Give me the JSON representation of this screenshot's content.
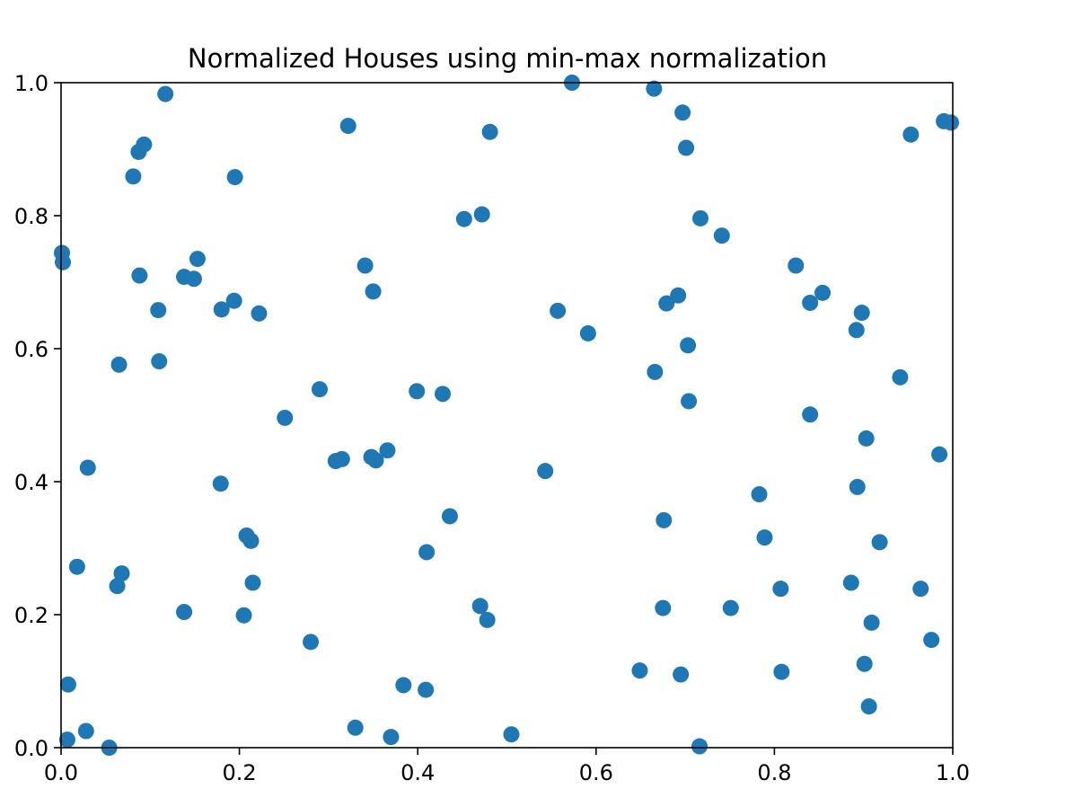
{
  "chart_data": {
    "type": "scatter",
    "title": "Normalized Houses using min-max normalization",
    "xlabel": "",
    "ylabel": "",
    "xlim": [
      0.0,
      1.0
    ],
    "ylim": [
      0.0,
      1.0
    ],
    "xticks": [
      "0.0",
      "0.2",
      "0.4",
      "0.6",
      "0.8",
      "1.0"
    ],
    "yticks": [
      "0.0",
      "0.2",
      "0.4",
      "0.6",
      "0.8",
      "1.0"
    ],
    "grid": false,
    "marker_color": "#1f77b4",
    "series": [
      {
        "points": [
          [
            0.117,
            0.983
          ],
          [
            0.093,
            0.907
          ],
          [
            0.087,
            0.896
          ],
          [
            0.081,
            0.859
          ],
          [
            0.195,
            0.858
          ],
          [
            0.322,
            0.935
          ],
          [
            0.481,
            0.926
          ],
          [
            0.573,
            1.0
          ],
          [
            0.665,
            0.991
          ],
          [
            0.697,
            0.955
          ],
          [
            0.701,
            0.902
          ],
          [
            0.953,
            0.922
          ],
          [
            0.99,
            0.942
          ],
          [
            0.998,
            0.94
          ],
          [
            0.001,
            0.744
          ],
          [
            0.002,
            0.73
          ],
          [
            0.088,
            0.71
          ],
          [
            0.138,
            0.708
          ],
          [
            0.149,
            0.705
          ],
          [
            0.153,
            0.735
          ],
          [
            0.109,
            0.658
          ],
          [
            0.18,
            0.659
          ],
          [
            0.194,
            0.672
          ],
          [
            0.222,
            0.653
          ],
          [
            0.341,
            0.725
          ],
          [
            0.35,
            0.686
          ],
          [
            0.452,
            0.795
          ],
          [
            0.472,
            0.802
          ],
          [
            0.717,
            0.796
          ],
          [
            0.741,
            0.77
          ],
          [
            0.557,
            0.657
          ],
          [
            0.591,
            0.623
          ],
          [
            0.679,
            0.668
          ],
          [
            0.692,
            0.68
          ],
          [
            0.703,
            0.605
          ],
          [
            0.824,
            0.725
          ],
          [
            0.84,
            0.669
          ],
          [
            0.854,
            0.684
          ],
          [
            0.898,
            0.654
          ],
          [
            0.892,
            0.628
          ],
          [
            0.065,
            0.576
          ],
          [
            0.11,
            0.581
          ],
          [
            0.251,
            0.496
          ],
          [
            0.29,
            0.539
          ],
          [
            0.399,
            0.536
          ],
          [
            0.428,
            0.532
          ],
          [
            0.666,
            0.565
          ],
          [
            0.704,
            0.521
          ],
          [
            0.941,
            0.557
          ],
          [
            0.84,
            0.501
          ],
          [
            0.903,
            0.465
          ],
          [
            0.985,
            0.441
          ],
          [
            0.03,
            0.421
          ],
          [
            0.179,
            0.397
          ],
          [
            0.308,
            0.431
          ],
          [
            0.315,
            0.434
          ],
          [
            0.348,
            0.437
          ],
          [
            0.353,
            0.432
          ],
          [
            0.366,
            0.447
          ],
          [
            0.543,
            0.416
          ],
          [
            0.783,
            0.381
          ],
          [
            0.893,
            0.392
          ],
          [
            0.436,
            0.348
          ],
          [
            0.41,
            0.294
          ],
          [
            0.676,
            0.342
          ],
          [
            0.789,
            0.316
          ],
          [
            0.918,
            0.309
          ],
          [
            0.208,
            0.319
          ],
          [
            0.213,
            0.311
          ],
          [
            0.018,
            0.272
          ],
          [
            0.068,
            0.262
          ],
          [
            0.063,
            0.243
          ],
          [
            0.215,
            0.248
          ],
          [
            0.138,
            0.204
          ],
          [
            0.205,
            0.199
          ],
          [
            0.47,
            0.213
          ],
          [
            0.478,
            0.192
          ],
          [
            0.675,
            0.21
          ],
          [
            0.751,
            0.21
          ],
          [
            0.807,
            0.239
          ],
          [
            0.886,
            0.248
          ],
          [
            0.964,
            0.239
          ],
          [
            0.909,
            0.188
          ],
          [
            0.976,
            0.162
          ],
          [
            0.28,
            0.159
          ],
          [
            0.008,
            0.095
          ],
          [
            0.384,
            0.094
          ],
          [
            0.409,
            0.087
          ],
          [
            0.649,
            0.116
          ],
          [
            0.695,
            0.11
          ],
          [
            0.808,
            0.114
          ],
          [
            0.901,
            0.126
          ],
          [
            0.906,
            0.062
          ],
          [
            0.028,
            0.025
          ],
          [
            0.007,
            0.012
          ],
          [
            0.054,
            0.0
          ],
          [
            0.33,
            0.03
          ],
          [
            0.37,
            0.016
          ],
          [
            0.505,
            0.02
          ],
          [
            0.716,
            0.002
          ]
        ]
      }
    ]
  }
}
